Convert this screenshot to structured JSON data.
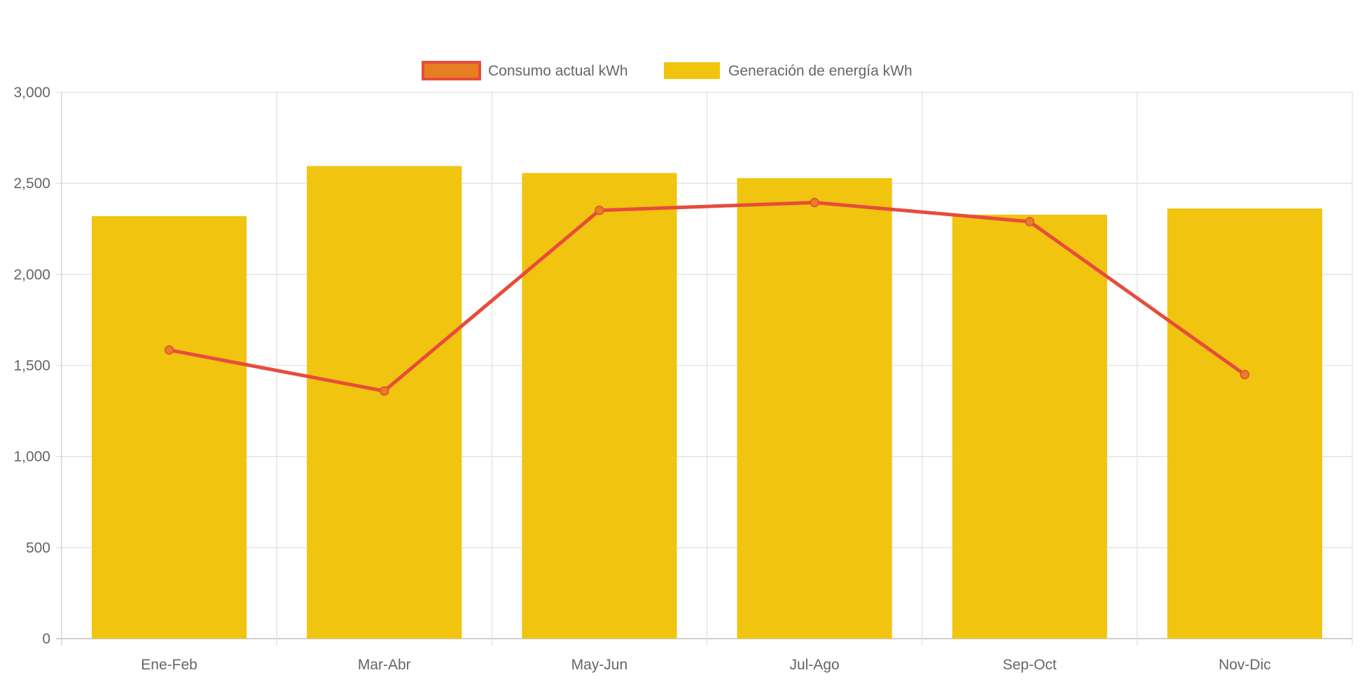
{
  "chart_data": {
    "type": "bar",
    "categories": [
      "Ene-Feb",
      "Mar-Abr",
      "May-Jun",
      "Jul-Ago",
      "Sep-Oct",
      "Nov-Dic"
    ],
    "series": [
      {
        "name": "Consumo actual kWh",
        "type": "line",
        "values": [
          1585,
          1360,
          2352,
          2395,
          2290,
          1450
        ],
        "color": "#E74C3C",
        "point_color": "#E67E22"
      },
      {
        "name": "Generación de energía kWh",
        "type": "bar",
        "values": [
          2320,
          2595,
          2557,
          2529,
          2328,
          2362
        ],
        "color": "#F1C40F"
      }
    ],
    "ylim": [
      0,
      3000
    ],
    "yticks": [
      "0",
      "500",
      "1,000",
      "1,500",
      "2,000",
      "2,500",
      "3,000"
    ],
    "ytick_values": [
      0,
      500,
      1000,
      1500,
      2000,
      2500,
      3000
    ],
    "grid": true,
    "legend": "top-center"
  }
}
